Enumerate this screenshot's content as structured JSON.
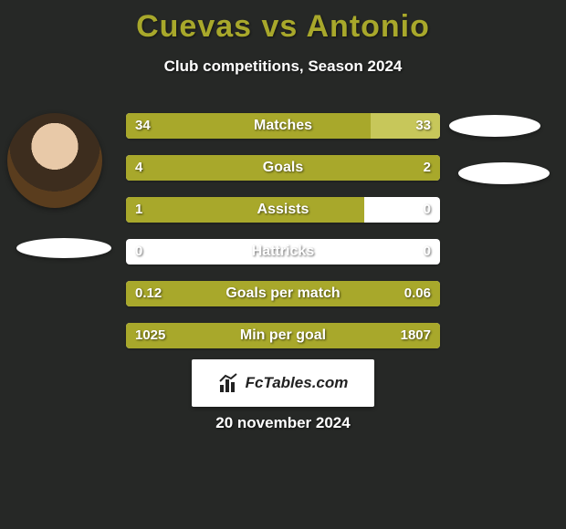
{
  "background_color": "#262826",
  "title_text": "Cuevas vs Antonio",
  "title_color": "#a8a82b",
  "subtitle_text": "Club competitions, Season 2024",
  "subtitle_color": "#ffffff",
  "brand_text": "FcTables.com",
  "date_text": "20 november 2024",
  "date_color": "#ffffff",
  "bar_colors": {
    "left": "#a8a82b",
    "right": "#c7c75a",
    "text": "#ffffff"
  },
  "stats": [
    {
      "label": "Matches",
      "left_val": "34",
      "right_val": "33",
      "left_pct": 78,
      "right_pct": 22
    },
    {
      "label": "Goals",
      "left_val": "4",
      "right_val": "2",
      "left_pct": 100,
      "right_pct": 0
    },
    {
      "label": "Assists",
      "left_val": "1",
      "right_val": "0",
      "left_pct": 76,
      "right_pct": 0
    },
    {
      "label": "Hattricks",
      "left_val": "0",
      "right_val": "0",
      "left_pct": 0,
      "right_pct": 0
    },
    {
      "label": "Goals per match",
      "left_val": "0.12",
      "right_val": "0.06",
      "left_pct": 100,
      "right_pct": 0
    },
    {
      "label": "Min per goal",
      "left_val": "1025",
      "right_val": "1807",
      "left_pct": 100,
      "right_pct": 0
    }
  ]
}
